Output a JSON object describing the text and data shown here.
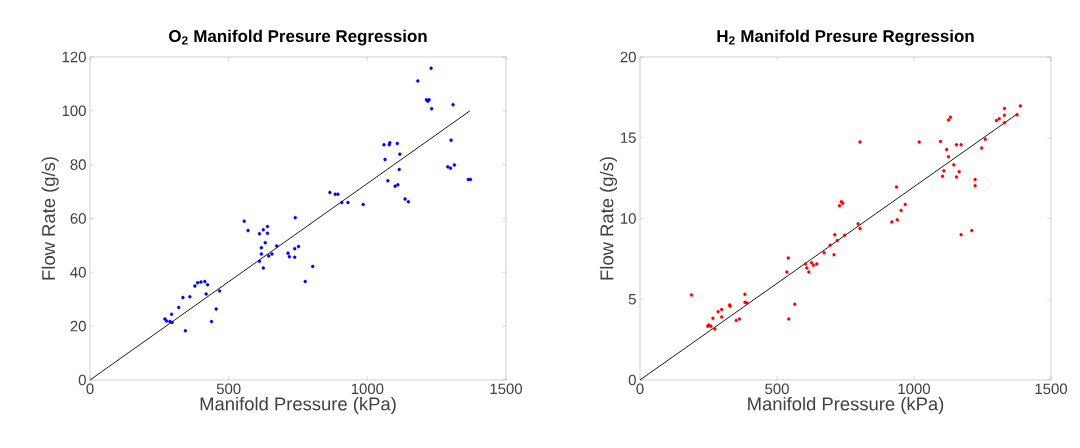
{
  "chart_data": [
    {
      "type": "scatter",
      "title": "O$_{2}$ Manifold Presure Regression",
      "xlabel": "Manifold Pressure (kPa)",
      "ylabel": "Flow Rate (g/s)",
      "xlim": [
        0,
        1500
      ],
      "ylim": [
        0,
        120
      ],
      "xticks": [
        0,
        500,
        1000,
        1500
      ],
      "yticks": [
        0,
        20,
        40,
        60,
        80,
        100,
        120
      ],
      "series": [
        {
          "color": "#0000ff",
          "marker": "circle",
          "x": [
            270,
            276,
            288,
            296,
            294,
            320,
            335,
            344,
            360,
            378,
            388,
            400,
            414,
            424,
            419,
            438,
            455,
            467,
            556,
            570,
            611,
            625,
            640,
            640,
            632,
            618,
            673,
            618,
            611,
            625,
            644,
            656,
            714,
            719,
            738,
            738,
            752,
            740,
            803,
            776,
            865,
            884,
            894,
            908,
            930,
            985,
            1060,
            1079,
            1081,
            1108,
            1064,
            1117,
            1115,
            1074,
            1100,
            1110,
            1136,
            1148,
            1182,
            1230,
            1213,
            1223,
            1218,
            1232,
            1309,
            1302,
            1290,
            1300,
            1314,
            1364,
            1372
          ],
          "values": [
            22.7,
            21.9,
            21.7,
            21.4,
            24.4,
            26.9,
            30.6,
            18.3,
            30.9,
            34.9,
            36.1,
            36.4,
            36.6,
            35.4,
            31.9,
            21.7,
            26.4,
            33.1,
            59.0,
            55.5,
            54.3,
            55.8,
            57.0,
            54.5,
            51.0,
            49.1,
            49.8,
            46.8,
            44.1,
            41.6,
            46.1,
            46.8,
            47.1,
            45.8,
            45.6,
            48.8,
            49.6,
            60.3,
            42.2,
            36.6,
            69.7,
            69.0,
            69.0,
            65.9,
            65.9,
            65.2,
            87.4,
            87.4,
            88.1,
            87.9,
            81.9,
            83.9,
            78.2,
            74.0,
            72.0,
            72.5,
            67.2,
            66.2,
            111.1,
            115.8,
            104.1,
            104.1,
            103.6,
            100.8,
            102.3,
            89.1,
            79.2,
            78.7,
            79.9,
            74.5,
            74.5
          ]
        },
        {
          "type": "line",
          "color": "#1a1a1a",
          "marker": "none",
          "x": [
            0,
            1370
          ],
          "values": [
            0,
            100
          ]
        }
      ]
    },
    {
      "type": "scatter",
      "title": "H$_{2}$ Manifold Presure Regression",
      "xlabel": "Manifold Pressure (kPa)",
      "ylabel": "Flow Rate (g/s)",
      "xlim": [
        0,
        1500
      ],
      "ylim": [
        0,
        20
      ],
      "xticks": [
        0,
        500,
        1000,
        1500
      ],
      "yticks": [
        0,
        5,
        10,
        15,
        20
      ],
      "series": [
        {
          "color": "#ff0000",
          "marker": "circle",
          "x": [
            188,
            251,
            259,
            247,
            266,
            273,
            285,
            298,
            298,
            327,
            329,
            351,
            363,
            383,
            383,
            390,
            536,
            541,
            543,
            565,
            604,
            609,
            616,
            626,
            633,
            645,
            672,
            694,
            708,
            711,
            720,
            728,
            735,
            740,
            747,
            796,
            803,
            803,
            919,
            939,
            936,
            953,
            968,
            1019,
            1097,
            1104,
            1109,
            1119,
            1126,
            1126,
            1133,
            1145,
            1155,
            1155,
            1165,
            1172,
            1172,
            1211,
            1223,
            1223,
            1247,
            1260,
            1301,
            1311,
            1330,
            1330,
            1330,
            1376,
            1388
          ],
          "values": [
            5.27,
            3.4,
            3.32,
            3.32,
            3.82,
            3.15,
            4.23,
            4.36,
            3.9,
            4.65,
            4.56,
            3.69,
            3.78,
            5.31,
            4.81,
            4.77,
            6.68,
            7.55,
            3.78,
            4.69,
            7.18,
            6.93,
            6.68,
            7.26,
            7.1,
            7.18,
            7.88,
            8.34,
            7.76,
            9.0,
            8.63,
            10.79,
            11.04,
            10.95,
            8.96,
            9.67,
            9.38,
            14.73,
            9.79,
            9.92,
            11.95,
            10.5,
            10.87,
            14.73,
            14.77,
            12.61,
            12.95,
            14.27,
            13.82,
            16.1,
            16.27,
            13.32,
            12.57,
            14.56,
            12.9,
            14.56,
            9.0,
            9.25,
            12.41,
            12.03,
            14.36,
            14.9,
            16.06,
            16.18,
            16.39,
            16.81,
            15.93,
            16.43,
            16.97
          ]
        },
        {
          "type": "line",
          "color": "#1a1a1a",
          "marker": "none",
          "x": [
            0,
            1379
          ],
          "values": [
            0,
            16.5
          ]
        }
      ]
    }
  ]
}
